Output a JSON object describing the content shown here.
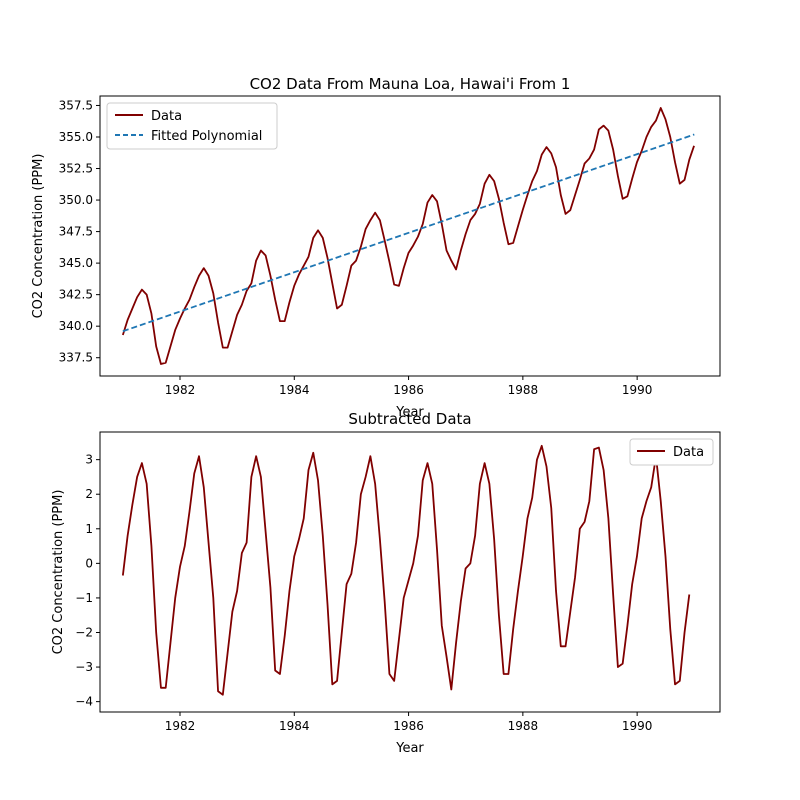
{
  "chart_data": [
    {
      "type": "line",
      "title": "CO2 Data From Mauna Loa, Hawai'i From 1",
      "xlabel": "Year",
      "ylabel": "CO2 Concentration (PPM)",
      "xlim": [
        1980.6,
        1991.45
      ],
      "ylim": [
        336.05,
        358.25
      ],
      "xticks": [
        1982,
        1984,
        1986,
        1988,
        1990
      ],
      "yticks": [
        337.5,
        340.0,
        342.5,
        345.0,
        347.5,
        350.0,
        352.5,
        355.0,
        357.5
      ],
      "grid": false,
      "legend_position": "upper-left",
      "series": [
        {
          "name": "Data",
          "color": "#800000",
          "style": "solid",
          "x_start": 1981.0,
          "x_step": 0.0833,
          "y": [
            339.3,
            340.5,
            341.4,
            342.3,
            342.9,
            342.5,
            341.0,
            338.4,
            337.0,
            337.1,
            338.4,
            339.7,
            340.6,
            341.4,
            342.1,
            343.1,
            344.0,
            344.6,
            344.0,
            342.6,
            340.3,
            338.3,
            338.3,
            339.6,
            340.9,
            341.7,
            342.8,
            343.4,
            345.2,
            346.0,
            345.6,
            344.0,
            342.1,
            340.4,
            340.4,
            341.9,
            343.2,
            344.1,
            344.8,
            345.5,
            347.0,
            347.6,
            347.0,
            345.4,
            343.4,
            341.4,
            341.7,
            343.2,
            344.8,
            345.2,
            346.3,
            347.7,
            348.4,
            349.0,
            348.4,
            346.8,
            345.1,
            343.3,
            343.2,
            344.6,
            345.8,
            346.4,
            347.1,
            348.1,
            349.8,
            350.4,
            349.9,
            348.1,
            346.0,
            345.2,
            344.5,
            346.0,
            347.3,
            348.4,
            348.9,
            349.7,
            351.3,
            352.0,
            351.5,
            350.1,
            348.2,
            346.5,
            346.6,
            347.9,
            349.2,
            350.4,
            351.5,
            352.3,
            353.6,
            354.2,
            353.7,
            352.6,
            350.4,
            348.9,
            349.2,
            350.4,
            351.6,
            352.9,
            353.3,
            354.0,
            355.6,
            355.9,
            355.5,
            354.0,
            351.9,
            350.1,
            350.3,
            351.7,
            353.0,
            353.9,
            355.0,
            355.8,
            356.3,
            357.3,
            356.4,
            355.0,
            353.0,
            351.3,
            351.6,
            353.2,
            354.3
          ]
        },
        {
          "name": "Fitted Polynomial",
          "color": "#1f77b4",
          "style": "dashed",
          "x": [
            1981.0,
            1991.0
          ],
          "y": [
            339.6,
            355.2
          ]
        }
      ]
    },
    {
      "type": "line",
      "title": "Subtracted Data",
      "xlabel": "Year",
      "ylabel": "CO2 Concentration (PPM)",
      "xlim": [
        1980.6,
        1991.45
      ],
      "ylim": [
        -4.3,
        3.8
      ],
      "xticks": [
        1982,
        1984,
        1986,
        1988,
        1990
      ],
      "yticks": [
        -4,
        -3,
        -2,
        -1,
        0,
        1,
        2,
        3
      ],
      "grid": false,
      "legend_position": "upper-right",
      "series": [
        {
          "name": "Data",
          "color": "#800000",
          "style": "solid",
          "x_start": 1981.0,
          "x_step": 0.0833,
          "y": [
            -0.35,
            0.8,
            1.7,
            2.5,
            2.9,
            2.3,
            0.5,
            -2.0,
            -3.6,
            -3.6,
            -2.3,
            -1.0,
            -0.1,
            0.5,
            1.5,
            2.6,
            3.1,
            2.2,
            0.6,
            -1.0,
            -3.7,
            -3.8,
            -2.6,
            -1.4,
            -0.8,
            0.3,
            0.6,
            2.5,
            3.1,
            2.5,
            0.9,
            -0.7,
            -3.1,
            -3.2,
            -2.1,
            -0.8,
            0.2,
            0.7,
            1.3,
            2.7,
            3.2,
            2.4,
            0.8,
            -1.2,
            -3.5,
            -3.4,
            -2.0,
            -0.6,
            -0.3,
            0.6,
            2.0,
            2.5,
            3.1,
            2.3,
            0.7,
            -1.1,
            -3.2,
            -3.4,
            -2.2,
            -1.0,
            -0.5,
            0.0,
            0.8,
            2.4,
            2.9,
            2.3,
            0.4,
            -1.8,
            -2.7,
            -3.65,
            -2.3,
            -1.1,
            -0.15,
            0.0,
            0.8,
            2.3,
            2.9,
            2.3,
            0.7,
            -1.5,
            -3.2,
            -3.2,
            -1.9,
            -0.8,
            0.2,
            1.3,
            1.9,
            3.0,
            3.4,
            2.8,
            1.6,
            -0.8,
            -2.4,
            -2.4,
            -1.4,
            -0.4,
            1.0,
            1.2,
            1.8,
            3.3,
            3.35,
            2.7,
            1.3,
            -0.9,
            -3.0,
            -2.9,
            -1.8,
            -0.6,
            0.2,
            1.3,
            1.8,
            2.2,
            3.1,
            1.8,
            0.2,
            -1.9,
            -3.5,
            -3.4,
            -2.0,
            -0.9
          ]
        }
      ]
    }
  ]
}
